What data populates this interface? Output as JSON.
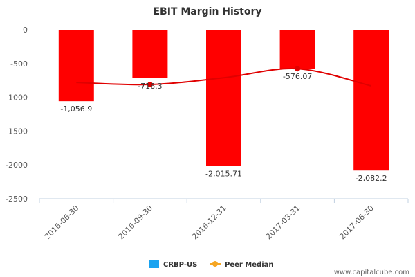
{
  "chart_data": {
    "type": "bar",
    "title": "EBIT Margin History",
    "categories": [
      "2016-06-30",
      "2016-09-30",
      "2016-12-31",
      "2017-03-31",
      "2017-06-30"
    ],
    "series": [
      {
        "name": "CRBP-US",
        "values": [
          -1056.9,
          -716.3,
          -2015.71,
          -576.07,
          -2082.2
        ],
        "labels": [
          "-1,056.9",
          "-716.3",
          "-2,015.71",
          "-576.07",
          "-2,082.2"
        ],
        "bar_color": "#ff0000",
        "legend_color": "#1aa3f0"
      },
      {
        "name": "Peer Median",
        "type": "line",
        "values": [
          -780,
          -810,
          -710,
          -576.07,
          -830
        ],
        "marker_indices": [
          1,
          3
        ],
        "line_color": "#e00000",
        "legend_color": "#f5a623"
      }
    ],
    "ylim": [
      -2500,
      0
    ],
    "yticks": [
      0,
      -500,
      -1000,
      -1500,
      -2000,
      -2500
    ],
    "ytick_labels": [
      "0",
      "-500",
      "-1000",
      "-1500",
      "-2000",
      "-2500"
    ],
    "grid": false,
    "legend": "bottom-center"
  },
  "credit": "www.capitalcube.com"
}
